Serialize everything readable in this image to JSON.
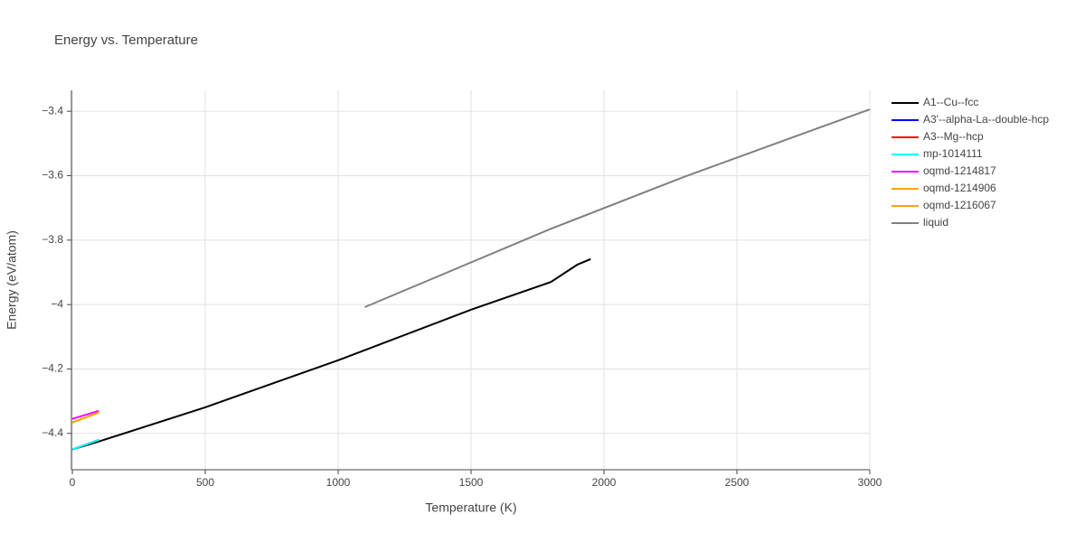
{
  "chart_data": {
    "type": "line",
    "title": "Energy vs. Temperature",
    "x_label": "Temperature (K)",
    "y_label": "Energy (eV/atom)",
    "xlim": [
      0,
      3000
    ],
    "xticks": [
      0,
      500,
      1000,
      1500,
      2000,
      2500,
      3000
    ],
    "ylim": [
      -4.51,
      -3.335
    ],
    "yticks": [
      {
        "value": -4.4,
        "label": "−4.4"
      },
      {
        "value": -4.2,
        "label": "−4.2"
      },
      {
        "value": -4,
        "label": "−4"
      },
      {
        "value": -3.8,
        "label": "−3.8"
      },
      {
        "value": -3.6,
        "label": "−3.6"
      },
      {
        "value": -3.4,
        "label": "−3.4"
      }
    ],
    "grid": true,
    "legend": "right",
    "series": [
      {
        "name": "A1--Cu--fcc",
        "color": "#000000",
        "x": [
          0,
          100,
          500,
          1000,
          1500,
          1800,
          1900,
          1950
        ],
        "values": [
          -4.45,
          -4.425,
          -4.319,
          -4.173,
          -4.016,
          -3.93,
          -3.876,
          -3.859
        ]
      },
      {
        "name": "A3'--alpha-La--double-hcp",
        "color": "#0000ff",
        "x": [
          0,
          100
        ],
        "values": [
          -4.45,
          -4.42
        ]
      },
      {
        "name": "A3--Mg--hcp",
        "color": "#ff0000",
        "x": [
          0,
          100
        ],
        "values": [
          -4.45,
          -4.42
        ]
      },
      {
        "name": "mp-1014111",
        "color": "#00ffff",
        "x": [
          0,
          100
        ],
        "values": [
          -4.45,
          -4.42
        ]
      },
      {
        "name": "oqmd-1214817",
        "color": "#ff00ff",
        "x": [
          0,
          100
        ],
        "values": [
          -4.355,
          -4.33
        ]
      },
      {
        "name": "oqmd-1214906",
        "color": "#ffa500",
        "x": [
          0,
          100
        ],
        "values": [
          -4.366,
          -4.335
        ]
      },
      {
        "name": "oqmd-1216067",
        "color": "#ffa500",
        "x": [
          0,
          100
        ],
        "values": [
          -4.366,
          -4.335
        ]
      },
      {
        "name": "liquid",
        "color": "#808080",
        "x": [
          1100,
          1800,
          2300,
          3000
        ],
        "values": [
          -4.008,
          -3.765,
          -3.604,
          -3.394
        ]
      }
    ]
  }
}
